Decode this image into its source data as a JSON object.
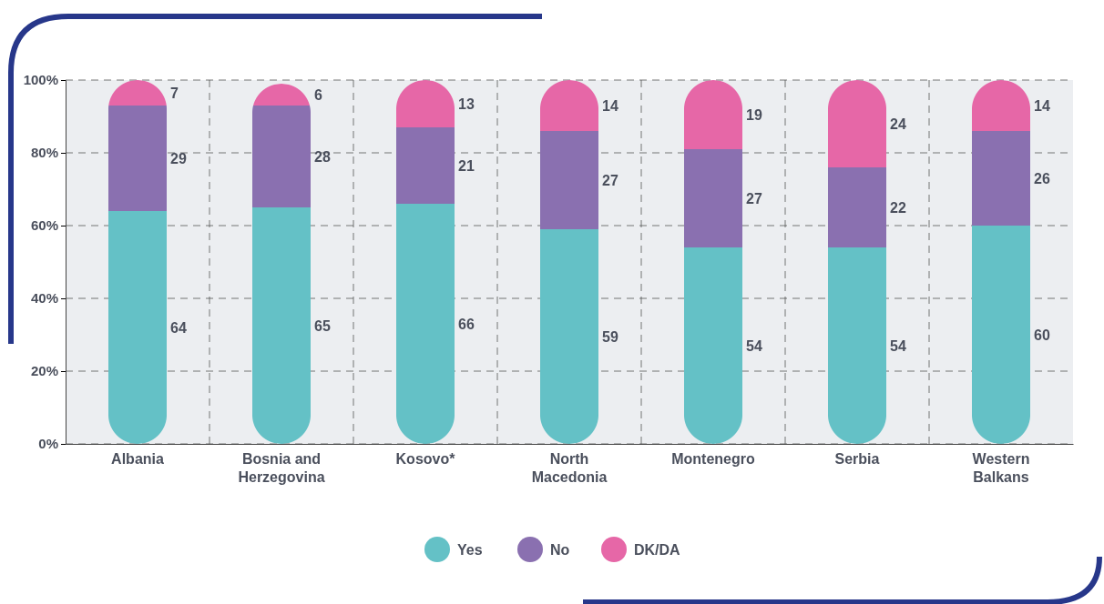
{
  "chart_data": {
    "type": "bar",
    "stacked": true,
    "categories": [
      "Albania",
      "Bosnia and Herzegovina",
      "Kosovo*",
      "North Macedonia",
      "Montenegro",
      "Serbia",
      "Western Balkans"
    ],
    "series": [
      {
        "name": "Yes",
        "color": "#64c1c6",
        "values": [
          64,
          65,
          66,
          59,
          54,
          54,
          60
        ]
      },
      {
        "name": "No",
        "color": "#8a70b0",
        "values": [
          29,
          28,
          21,
          27,
          27,
          22,
          26
        ]
      },
      {
        "name": "DK/DA",
        "color": "#e667a7",
        "values": [
          7,
          6,
          13,
          14,
          19,
          24,
          14
        ]
      }
    ],
    "ylim": [
      0,
      100
    ],
    "yticks": [
      {
        "value": 0,
        "label": "0%"
      },
      {
        "value": 20,
        "label": "20%"
      },
      {
        "value": 40,
        "label": "40%"
      },
      {
        "value": 60,
        "label": "60%"
      },
      {
        "value": 80,
        "label": "80%"
      },
      {
        "value": 100,
        "label": "100%"
      }
    ],
    "grid": true,
    "legend": "bottom",
    "data_labels": true
  }
}
